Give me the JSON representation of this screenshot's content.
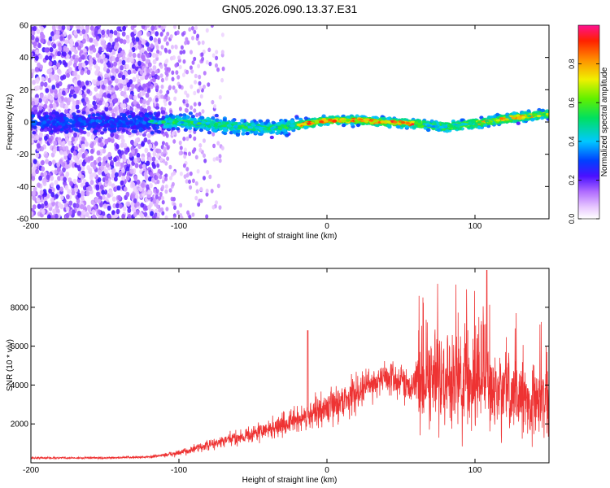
{
  "chart_data": [
    {
      "type": "heatmap",
      "title": "GN05.2026.090.13.37.E31",
      "xlabel": "Height of straight line (km)",
      "ylabel": "Frequency (Hz)",
      "xlim": [
        -200,
        150
      ],
      "ylim": [
        -60,
        60
      ],
      "xticks": [
        -200,
        -100,
        0,
        100
      ],
      "yticks": [
        -60,
        -40,
        -20,
        0,
        20,
        40,
        60
      ],
      "colorbar": {
        "label": "Normalized spectral amplitude",
        "range": [
          0.0,
          1.0
        ],
        "ticks": [
          "0.0",
          "0.2",
          "0.4",
          "0.6",
          "0.8"
        ],
        "tick_values": [
          0.0,
          0.2,
          0.4,
          0.6,
          0.8
        ]
      },
      "ridge": {
        "x": [
          -120,
          -100,
          -80,
          -60,
          -40,
          -20,
          0,
          20,
          40,
          60,
          80,
          100,
          120,
          150
        ],
        "y": [
          0,
          0,
          -1,
          -3,
          -4,
          -2,
          1,
          1,
          0,
          -1,
          -3,
          -1,
          2,
          5
        ]
      }
    },
    {
      "type": "line",
      "xlabel": "Height of straight line (km)",
      "ylabel": "SNR (10 * v/v)",
      "xlim": [
        -200,
        150
      ],
      "ylim": [
        0,
        10000
      ],
      "xticks": [
        -200,
        -100,
        0,
        100
      ],
      "yticks": [
        2000,
        4000,
        6000,
        8000
      ],
      "series": [
        {
          "name": "SNR",
          "color": "#ee3333",
          "x": [
            -200,
            -150,
            -120,
            -100,
            -80,
            -60,
            -40,
            -20,
            0,
            20,
            30,
            40,
            50,
            60,
            70,
            80,
            100,
            120,
            150
          ],
          "y": [
            250,
            250,
            300,
            500,
            900,
            1300,
            1700,
            2200,
            2800,
            3600,
            4100,
            4400,
            4200,
            4000,
            4200,
            4300,
            4000,
            3500,
            3200
          ]
        }
      ]
    }
  ]
}
